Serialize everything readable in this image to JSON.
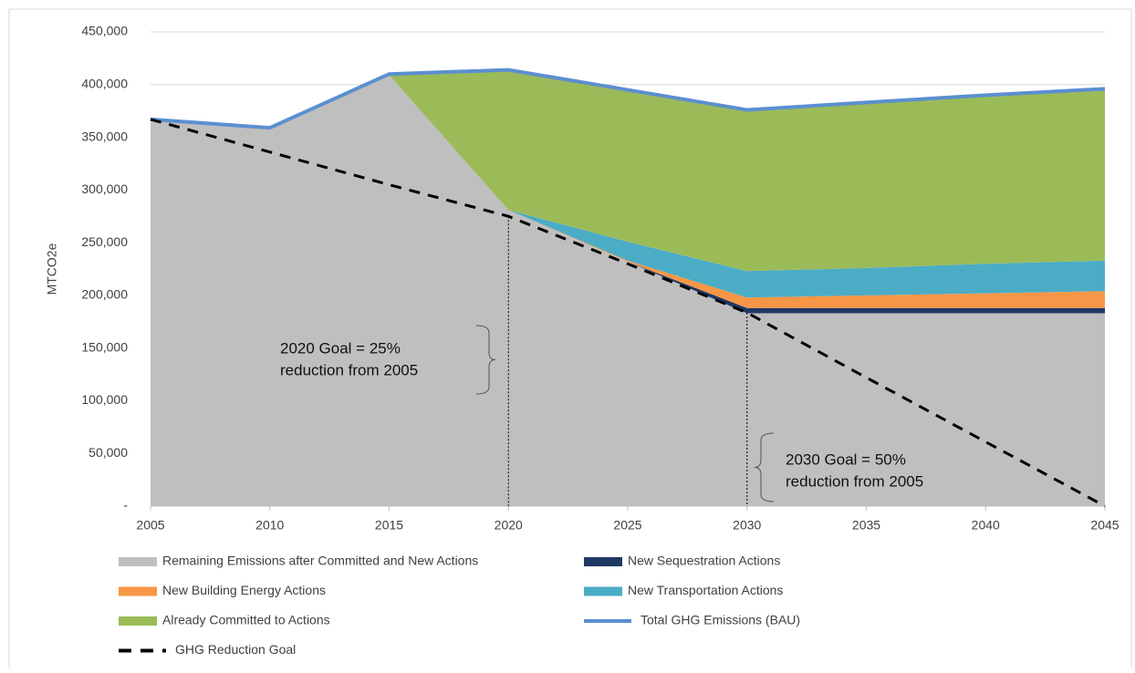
{
  "chart_data": {
    "type": "stacked-area",
    "y_label": "MTCO2e",
    "x": [
      2005,
      2010,
      2015,
      2020,
      2025,
      2030,
      2035,
      2040,
      2045
    ],
    "xlim": [
      2005,
      2045
    ],
    "xticks": [
      2005,
      2010,
      2015,
      2020,
      2025,
      2030,
      2035,
      2040,
      2045
    ],
    "ylim": [
      0,
      450000
    ],
    "yticks": [
      {
        "value": 0,
        "label": "-"
      },
      {
        "value": 50000,
        "label": "50,000"
      },
      {
        "value": 100000,
        "label": "100,000"
      },
      {
        "value": 150000,
        "label": "150,000"
      },
      {
        "value": 200000,
        "label": "200,000"
      },
      {
        "value": 250000,
        "label": "250,000"
      },
      {
        "value": 300000,
        "label": "300,000"
      },
      {
        "value": 350000,
        "label": "350,000"
      },
      {
        "value": 400000,
        "label": "400,000"
      },
      {
        "value": 450000,
        "label": "450,000"
      }
    ],
    "grid": true,
    "series": [
      {
        "name": "Remaining Emissions after Committed and New Actions",
        "kind": "area",
        "color": "#bfbfbf",
        "values": [
          367000,
          359000,
          409000,
          281000,
          232000,
          183000,
          183000,
          183000,
          183000
        ]
      },
      {
        "name": "New Sequestration Actions",
        "kind": "area",
        "color": "#1f3864",
        "values": [
          0,
          0,
          0,
          0,
          0,
          5000,
          5000,
          5000,
          5000
        ]
      },
      {
        "name": "New Building Energy Actions",
        "kind": "area",
        "color": "#f79646",
        "values": [
          0,
          0,
          0,
          0,
          1000,
          10000,
          12000,
          14000,
          16000
        ]
      },
      {
        "name": "New Transportation Actions",
        "kind": "area",
        "color": "#4bacc6",
        "values": [
          0,
          0,
          0,
          0,
          18000,
          25000,
          26000,
          28000,
          29000
        ]
      },
      {
        "name": "Already Committed to Actions",
        "kind": "area",
        "color": "#9bbb59",
        "values": [
          0,
          0,
          1000,
          133000,
          144000,
          153000,
          157000,
          160000,
          163000
        ]
      },
      {
        "name": "Total GHG Emissions (BAU)",
        "kind": "line",
        "color": "#5b8fd0",
        "values": [
          367000,
          359000,
          410000,
          414000,
          395000,
          376000,
          383000,
          390000,
          396000
        ]
      },
      {
        "name": "GHG Reduction Goal",
        "kind": "line",
        "dash": true,
        "color": "#000000",
        "values": [
          367000,
          336000,
          305000,
          275000,
          230000,
          183500,
          122000,
          61000,
          0
        ]
      }
    ],
    "annotations": [
      [
        "2020 Goal = 25%",
        "reduction from 2005"
      ],
      [
        "2030 Goal = 50%",
        "reduction from 2005"
      ]
    ]
  }
}
